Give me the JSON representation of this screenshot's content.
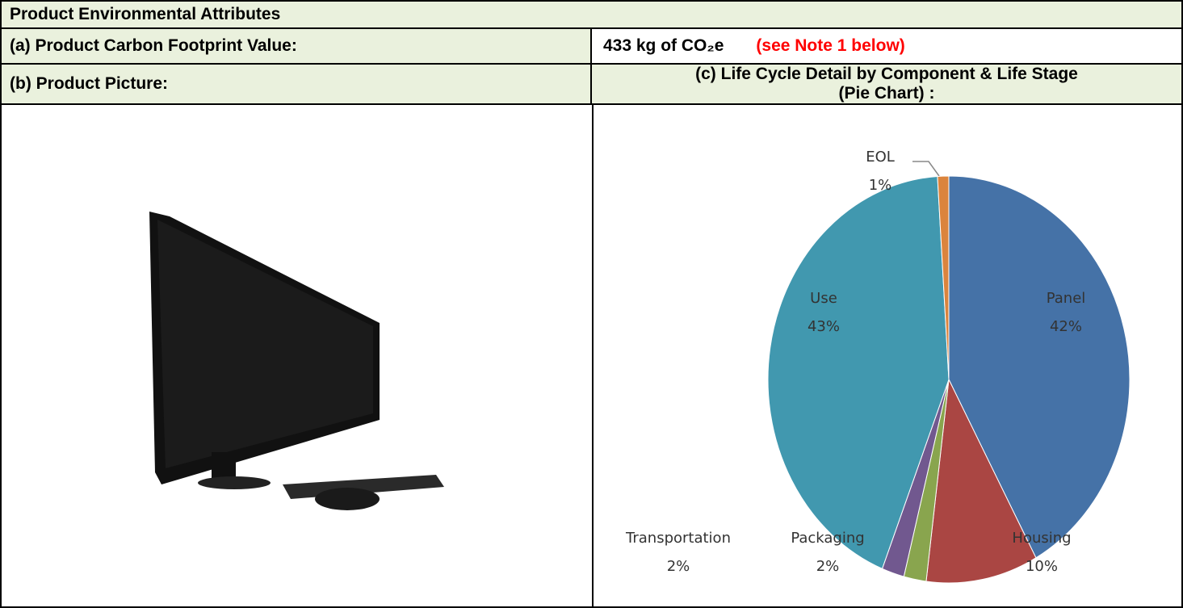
{
  "header": {
    "title": "Product Environmental Attributes"
  },
  "rows": {
    "carbon_label": "(a) Product Carbon Footprint Value:",
    "carbon_value": "433 kg of CO₂e",
    "carbon_note": "(see Note 1 below)",
    "picture_label": "(b) Product Picture:",
    "chart_label": [
      "(c) Life Cycle Detail by Component & Life Stage",
      "(Pie Chart) :"
    ]
  },
  "chart_data": {
    "type": "pie",
    "categories": [
      "Panel",
      "Housing",
      "Packaging",
      "Transportation",
      "Use",
      "EOL"
    ],
    "values": [
      42,
      10,
      2,
      2,
      43,
      1
    ],
    "value_labels": [
      "42%",
      "10%",
      "2%",
      "2%",
      "43%",
      "1%"
    ],
    "colors": [
      "#4572a7",
      "#aa4643",
      "#89a54e",
      "#71588f",
      "#4198af",
      "#db843d"
    ]
  }
}
